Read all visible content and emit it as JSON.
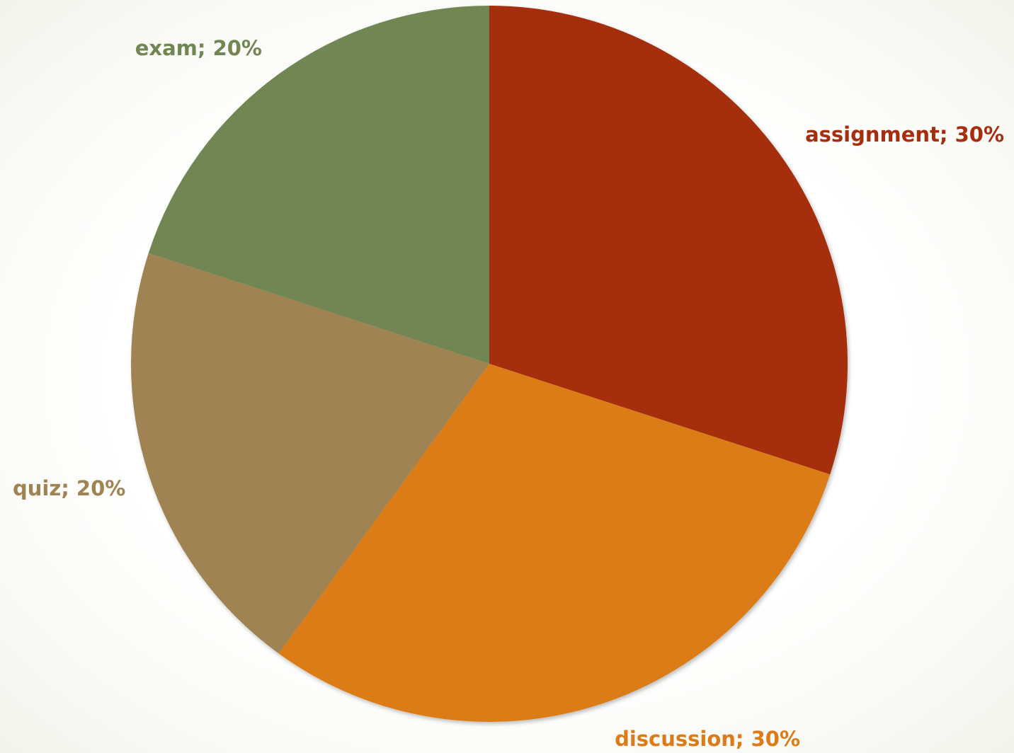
{
  "chart_data": {
    "type": "pie",
    "title": "",
    "legend": "none",
    "start_angle_deg": 0,
    "direction": "clockwise",
    "slices": [
      {
        "name": "assignment",
        "value": 30,
        "label": "assignment; 30%",
        "color": "#A52E0F"
      },
      {
        "name": "discussion",
        "value": 30,
        "label": "discussion; 30%",
        "color": "#DC7C18"
      },
      {
        "name": "quiz",
        "value": 20,
        "label": "quiz; 20%",
        "color": "#9F8352"
      },
      {
        "name": "exam",
        "value": 20,
        "label": "exam; 20%",
        "color": "#728653"
      }
    ]
  }
}
